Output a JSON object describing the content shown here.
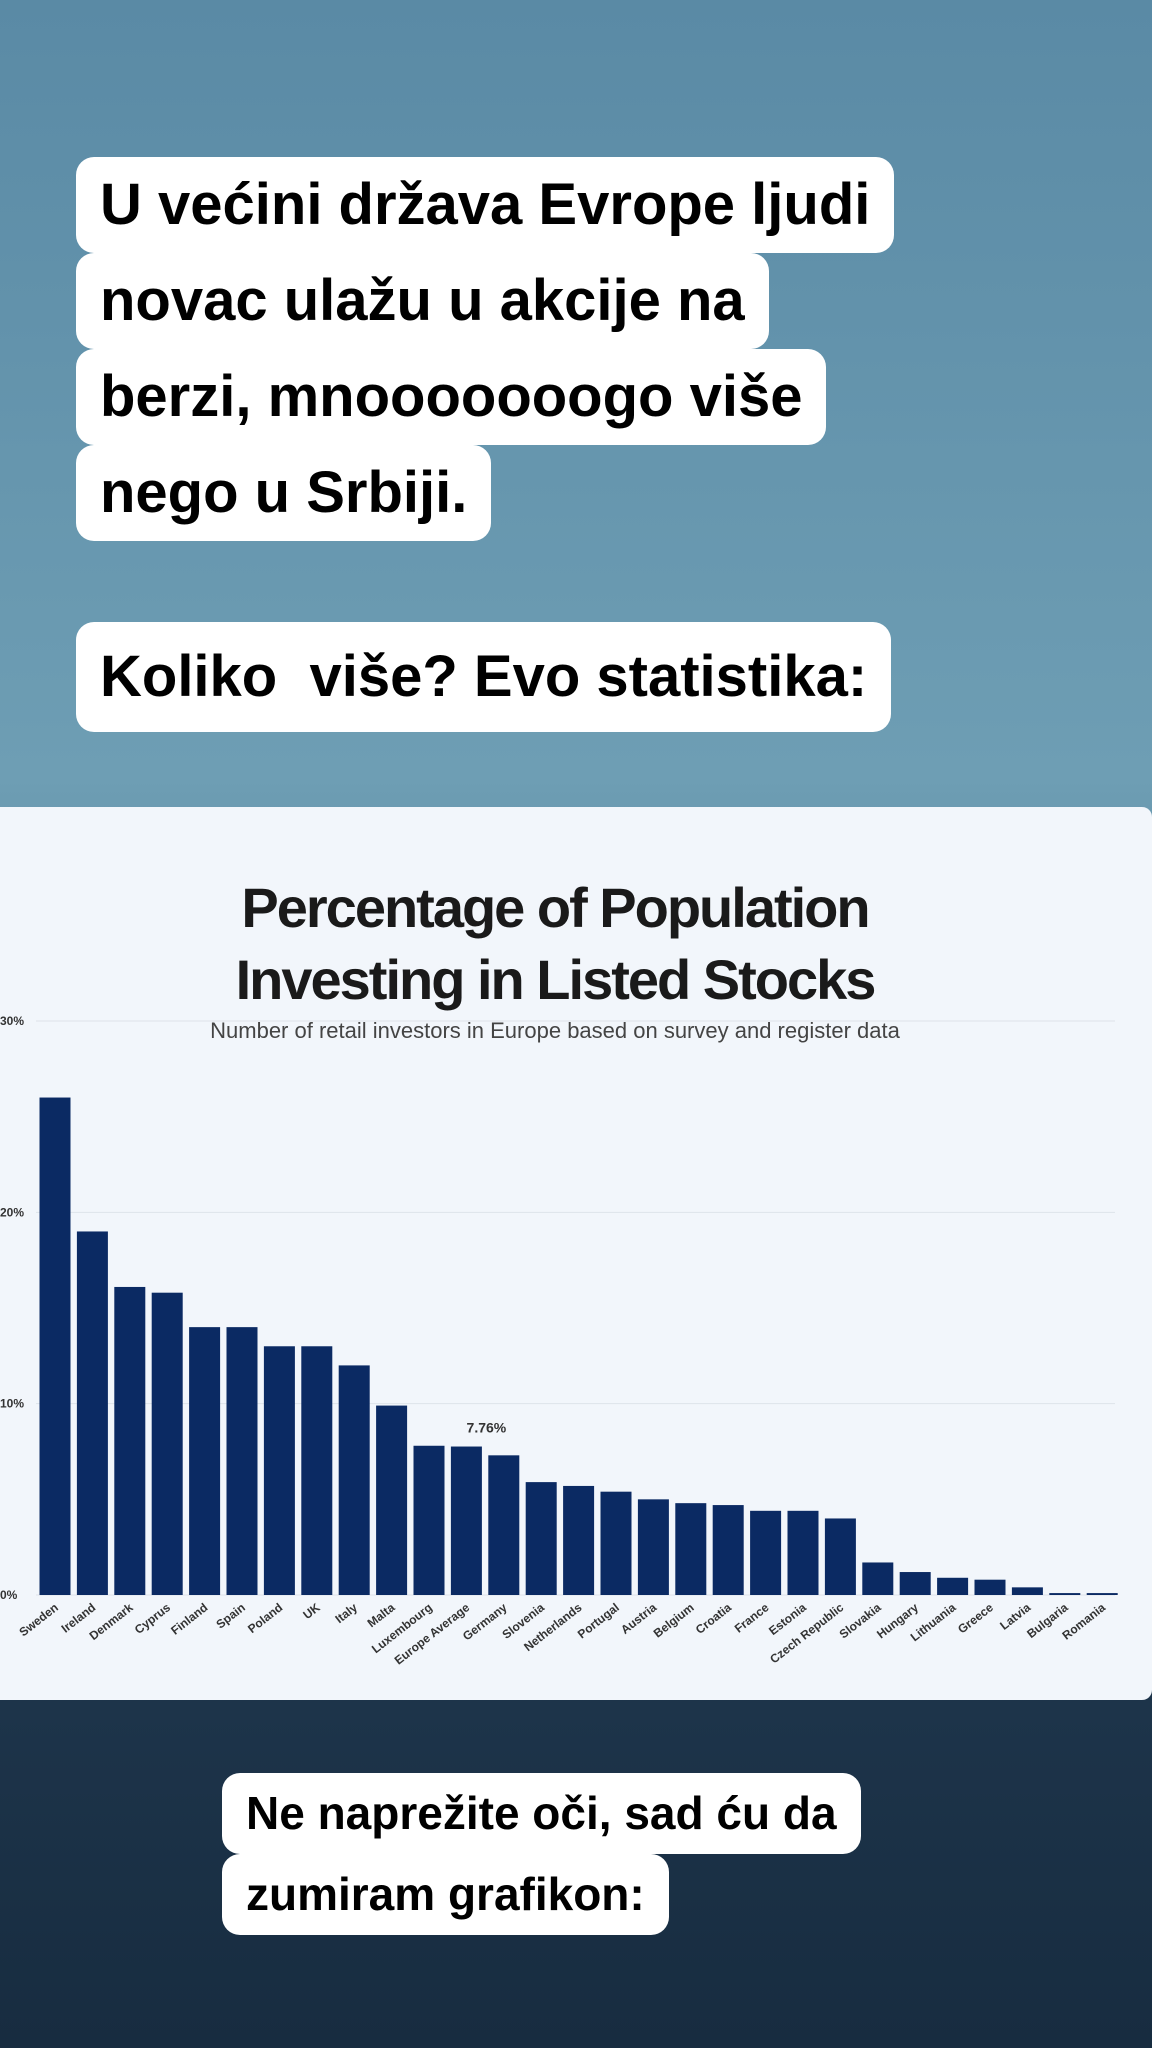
{
  "story": {
    "blocks": [
      {
        "lines": [
          "U većini država Evrope ljudi",
          "novac ulažu u akcije na",
          "berzi, mnooooooogo više",
          "nego u Srbiji."
        ]
      },
      {
        "lines": [
          "Koliko  više? Evo statistika:"
        ]
      },
      {
        "lines": [
          "Ne naprežite oči, sad ću da",
          "zumiram grafikon:"
        ]
      }
    ]
  },
  "chart_data": {
    "type": "bar",
    "title": [
      "Percentage of Population",
      "Investing in Listed Stocks"
    ],
    "subtitle": "Number of retail investors in Europe based on survey and register data",
    "categories": [
      "Sweden",
      "Ireland",
      "Denmark",
      "Cyprus",
      "Finland",
      "Spain",
      "Poland",
      "UK",
      "Italy",
      "Malta",
      "Luxembourg",
      "Europe Average",
      "Germany",
      "Slovenia",
      "Netherlands",
      "Portugal",
      "Austria",
      "Belgium",
      "Croatia",
      "France",
      "Estonia",
      "Czech Republic",
      "Slovakia",
      "Hungary",
      "Lithuania",
      "Greece",
      "Latvia",
      "Bulgaria",
      "Romania"
    ],
    "values": [
      26,
      19,
      16.1,
      15.8,
      14,
      14,
      13,
      13,
      12,
      9.9,
      7.8,
      7.76,
      7.3,
      5.9,
      5.7,
      5.4,
      5,
      4.8,
      4.7,
      4.4,
      4.4,
      4,
      1.7,
      1.2,
      0.9,
      0.8,
      0.4,
      0.1,
      0.1
    ],
    "value_labels": [
      null,
      null,
      null,
      null,
      null,
      null,
      null,
      null,
      null,
      null,
      null,
      "7.76%",
      null,
      null,
      null,
      null,
      null,
      null,
      null,
      null,
      null,
      null,
      null,
      null,
      null,
      null,
      null,
      null,
      null
    ],
    "color": "#0b2a63",
    "ylim": [
      0,
      30
    ],
    "yticks": [
      {
        "value": 0,
        "label": "0%"
      },
      {
        "value": 10,
        "label": "10%"
      },
      {
        "value": 20,
        "label": "20%"
      },
      {
        "value": 30,
        "label": "30%"
      }
    ],
    "grid": true
  }
}
